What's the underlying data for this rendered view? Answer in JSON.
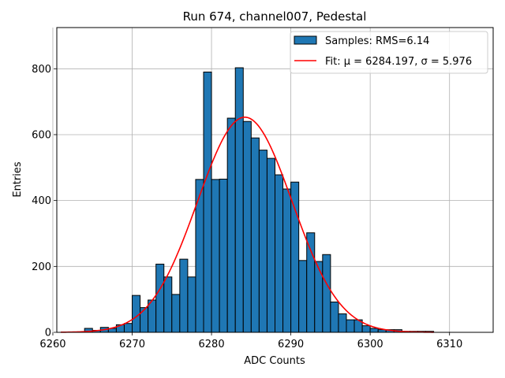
{
  "chart_data": {
    "type": "bar",
    "title": "Run 674, channel007, Pedestal",
    "xlabel": "ADC Counts",
    "ylabel": "Entries",
    "xlim": [
      6260.5,
      6315.5
    ],
    "ylim": [
      0,
      925
    ],
    "xticks": [
      6260,
      6270,
      6280,
      6290,
      6300,
      6310
    ],
    "yticks": [
      0,
      200,
      400,
      600,
      800
    ],
    "grid": true,
    "legend_position": "top-right",
    "histogram": {
      "name": "Samples: RMS=6.14",
      "color": "#1f77b4",
      "bin_start": 6261,
      "bin_width": 1,
      "counts": [
        0,
        0,
        0,
        12,
        6,
        15,
        12,
        23,
        27,
        112,
        75,
        98,
        207,
        168,
        115,
        222,
        168,
        464,
        790,
        464,
        465,
        650,
        803,
        640,
        590,
        553,
        528,
        478,
        435,
        456,
        218,
        302,
        215,
        236,
        92,
        56,
        38,
        38,
        20,
        12,
        8,
        8,
        8,
        3,
        3,
        3,
        3
      ]
    },
    "fit": {
      "name": "Fit: μ = 6284.197, σ = 5.976",
      "color": "#ff0000",
      "mu": 6284.197,
      "sigma": 5.976,
      "amplitude": 653,
      "x_range": [
        6261,
        6308
      ]
    },
    "legend": [
      {
        "label": "Samples: RMS=6.14",
        "kind": "patch",
        "color": "#1f77b4"
      },
      {
        "label": "Fit: μ = 6284.197, σ = 5.976",
        "kind": "line",
        "color": "#ff0000"
      }
    ]
  }
}
